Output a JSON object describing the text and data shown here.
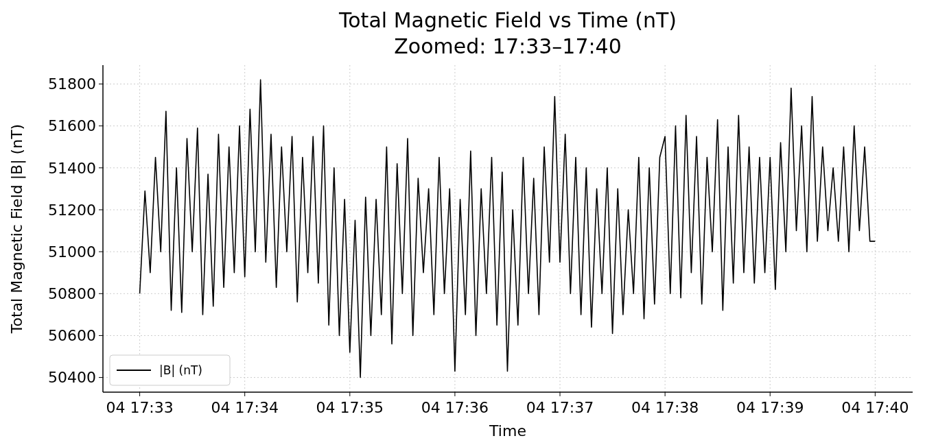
{
  "chart_data": {
    "type": "line",
    "title": "Total Magnetic Field vs Time (nT)",
    "subtitle": "Zoomed: 17:33–17:40",
    "xlabel": "Time",
    "ylabel": "Total Magnetic Field |B| (nT)",
    "categories": [
      "04 17:33",
      null,
      null,
      null,
      null,
      null,
      null,
      null,
      null,
      null,
      null,
      null,
      null,
      null,
      null,
      null,
      null,
      null,
      null,
      null,
      "04 17:34",
      null,
      null,
      null,
      null,
      null,
      null,
      null,
      null,
      null,
      null,
      null,
      null,
      null,
      null,
      null,
      null,
      null,
      null,
      null,
      "04 17:35",
      null,
      null,
      null,
      null,
      null,
      null,
      null,
      null,
      null,
      null,
      null,
      null,
      null,
      null,
      null,
      null,
      null,
      null,
      null,
      "04 17:36",
      null,
      null,
      null,
      null,
      null,
      null,
      null,
      null,
      null,
      null,
      null,
      null,
      null,
      null,
      null,
      null,
      null,
      null,
      null,
      "04 17:37",
      null,
      null,
      null,
      null,
      null,
      null,
      null,
      null,
      null,
      null,
      null,
      null,
      null,
      null,
      null,
      null,
      null,
      null,
      null,
      "04 17:38",
      null,
      null,
      null,
      null,
      null,
      null,
      null,
      null,
      null,
      null,
      null,
      null,
      null,
      null,
      null,
      null,
      null,
      null,
      null,
      "04 17:39",
      null,
      null,
      null,
      null,
      null,
      null,
      null,
      null,
      null,
      null,
      null,
      null,
      null,
      null,
      null,
      null,
      null,
      null,
      null,
      "04 17:40"
    ],
    "ylim": [
      50330,
      51890
    ],
    "yticks": [
      50400,
      50600,
      50800,
      51000,
      51200,
      51400,
      51600,
      51800
    ],
    "grid": true,
    "legend": "bottom left",
    "line_style": "solid",
    "series": [
      {
        "name": "|B| (nT)",
        "color": "#000000",
        "values": [
          50800,
          51290,
          50900,
          51450,
          51000,
          51670,
          50720,
          51400,
          50710,
          51540,
          51000,
          51590,
          50700,
          51370,
          50740,
          51560,
          50830,
          51500,
          50900,
          51600,
          50880,
          51680,
          51000,
          51820,
          50950,
          51560,
          50830,
          51500,
          51000,
          51550,
          50760,
          51450,
          50900,
          51550,
          50850,
          51600,
          50650,
          51400,
          50600,
          51250,
          50520,
          51150,
          50400,
          51260,
          50600,
          51250,
          50700,
          51500,
          50560,
          51420,
          50800,
          51540,
          50600,
          51350,
          50900,
          51300,
          50700,
          51450,
          50800,
          51300,
          50430,
          51250,
          50700,
          51480,
          50600,
          51300,
          50800,
          51450,
          50650,
          51380,
          50430,
          51200,
          50650,
          51450,
          50800,
          51350,
          50700,
          51500,
          50950,
          51740,
          50950,
          51560,
          50800,
          51450,
          50700,
          51400,
          50640,
          51300,
          50800,
          51400,
          50610,
          51300,
          50700,
          51200,
          50800,
          51450,
          50680,
          51400,
          50750,
          51450,
          51550,
          50800,
          51600,
          50780,
          51650,
          50900,
          51550,
          50750,
          51450,
          51000,
          51630,
          50720,
          51500,
          50850,
          51650,
          50900,
          51500,
          50850,
          51450,
          50900,
          51450,
          50820,
          51520,
          51000,
          51780,
          51100,
          51600,
          51000,
          51740,
          51050,
          51500,
          51100,
          51400,
          51050,
          51500,
          51000,
          51600,
          51100,
          51500,
          51050,
          51050
        ]
      }
    ]
  }
}
